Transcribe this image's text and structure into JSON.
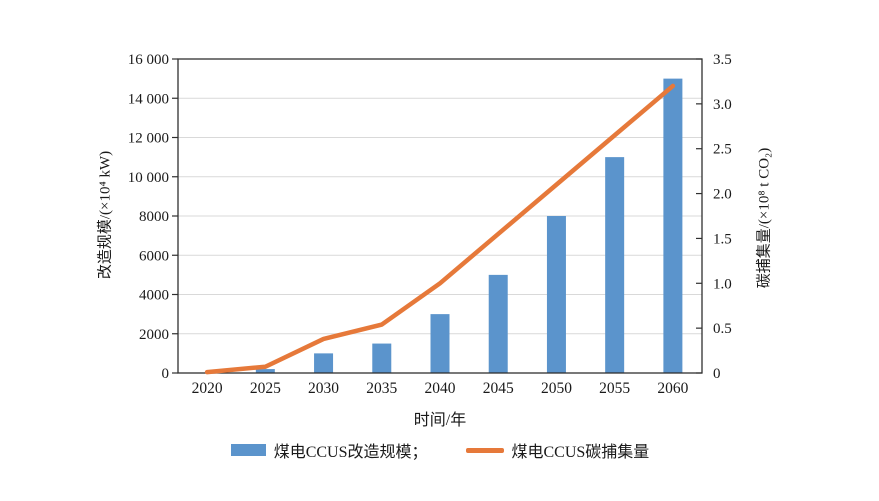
{
  "chart_data": {
    "type": "bar",
    "subtype": "bar-line-combo",
    "title": "",
    "categories": [
      "2020",
      "2025",
      "2030",
      "2035",
      "2040",
      "2045",
      "2050",
      "2055",
      "2060"
    ],
    "series": [
      {
        "name": "煤电CCUS改造规模",
        "type": "bar",
        "axis": "left",
        "color": "#5B94CC",
        "values": [
          0,
          200,
          1000,
          1500,
          3000,
          5000,
          8000,
          11000,
          15000
        ]
      },
      {
        "name": "煤电CCUS碳捕集量",
        "type": "line",
        "axis": "right",
        "color": "#E6793A",
        "values": [
          0.01,
          0.07,
          0.38,
          0.54,
          1.0,
          1.55,
          2.1,
          2.65,
          3.2
        ]
      }
    ],
    "x_axis": {
      "label": "时间/年",
      "tick_labels": [
        "2020",
        "2025",
        "2030",
        "2035",
        "2040",
        "2045",
        "2050",
        "2055",
        "2060"
      ]
    },
    "left_axis": {
      "label": "改造规模/(×10⁴ kW)",
      "min": 0,
      "max": 16000,
      "tick_step": 2000,
      "tick_labels": [
        "0",
        "2000",
        "4000",
        "6000",
        "8000",
        "10 000",
        "12 000",
        "14 000",
        "16 000"
      ]
    },
    "right_axis": {
      "label": "碳捕集量/(×10⁸ t CO₂)",
      "min": 0,
      "max": 3.5,
      "tick_step": 0.5,
      "tick_labels": [
        "0",
        "0.5",
        "1.0",
        "1.5",
        "2.0",
        "2.5",
        "3.0",
        "3.5"
      ]
    },
    "grid": true,
    "gridline_color": "#d9d9d9",
    "frame_color": "#2f2f2f",
    "text_color": "#1a1a1a",
    "legend": {
      "position": "bottom",
      "items": [
        {
          "label": "煤电CCUS改造规模；",
          "swatch": "bar",
          "color": "#5B94CC"
        },
        {
          "label": "煤电CCUS碳捕集量",
          "swatch": "line",
          "color": "#E6793A"
        }
      ]
    }
  }
}
